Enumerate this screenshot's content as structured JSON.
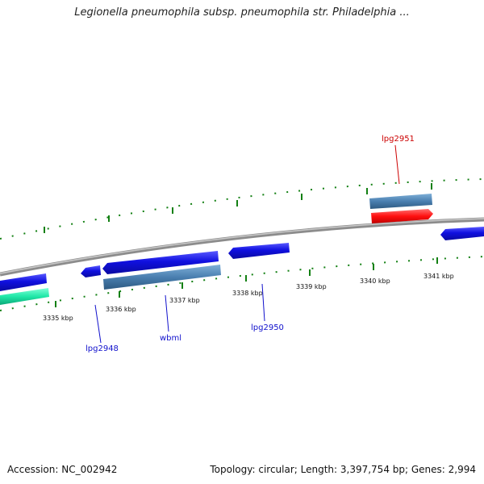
{
  "title": "Legionella pneumophila subsp. pneumophila str. Philadelphia ...",
  "footer": {
    "accession": "Accession: NC_002942",
    "topology": "Topology: circular; Length: 3,397,754 bp; Genes: 2,994"
  },
  "kbp_labels": [
    "3335 kbp",
    "3336 kbp",
    "3337 kbp",
    "3338 kbp",
    "3339 kbp",
    "3340 kbp",
    "3341 kbp"
  ],
  "gene_labels": {
    "lpg2948": "lpg2948",
    "wbml": "wbml",
    "lpg2950": "lpg2950",
    "lpg2951": "lpg2951"
  },
  "colors": {
    "cds_blue": "#1010e0",
    "cds_steel": "#4a7fb0",
    "cds_red": "#ff1010",
    "cds_teal": "#20e8a8",
    "tick_green": "#138013",
    "backbone": "#8c8c8c",
    "label_blue": "#1010cc",
    "label_red": "#cc0000"
  }
}
